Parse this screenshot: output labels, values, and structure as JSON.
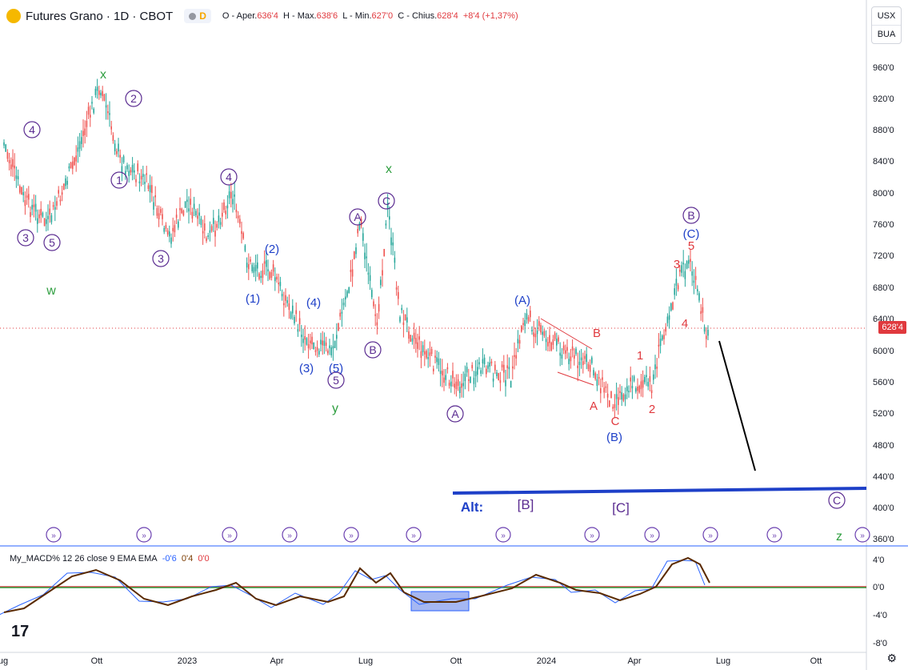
{
  "header": {
    "symbol_title": "Futures Grano · 1D · CBOT",
    "delay_badge": "D",
    "ohlc": {
      "open_label": "O - Aper.",
      "open": "636'4",
      "high_label": "H - Max.",
      "high": "638'6",
      "low_label": "L - Min.",
      "low": "627'0",
      "close_label": "C - Chius.",
      "close": "628'4",
      "change": "+8'4 (+1,37%)"
    }
  },
  "top_buttons": {
    "currency": "USX",
    "unit": "BUA"
  },
  "price_axis": [
    "960'0",
    "920'0",
    "880'0",
    "840'0",
    "800'0",
    "760'0",
    "720'0",
    "680'0",
    "640'0",
    "600'0",
    "560'0",
    "520'0",
    "480'0",
    "440'0",
    "400'0",
    "360'0"
  ],
  "current_price": "628'4",
  "time_axis": [
    "ug",
    "Ott",
    "2023",
    "Apr",
    "Lug",
    "Ott",
    "2024",
    "Apr",
    "Lug",
    "Ott"
  ],
  "macd": {
    "legend_name": "My_MACD% 12 26 close 9 EMA EMA",
    "v1": "-0'6",
    "v2": "0'4",
    "v3": "0'0",
    "axis": [
      "4'0",
      "0'0",
      "-4'0",
      "-8'0"
    ]
  },
  "wave_labels": {
    "circled": [
      "4",
      "2",
      "1",
      "3",
      "5",
      "3",
      "4",
      "A",
      "C",
      "B",
      "5",
      "A",
      "B",
      "C"
    ],
    "blue": [
      "(2)",
      "(1)",
      "(4)",
      "(3)",
      "(5)",
      "(A)",
      "(B)",
      "(C)"
    ],
    "red": [
      "B",
      "A",
      "C",
      "1",
      "2",
      "3",
      "4",
      "5"
    ],
    "green": [
      "x",
      "x",
      "w",
      "y",
      "z"
    ],
    "alt": [
      "Alt:",
      "[B]",
      "[C]"
    ]
  },
  "colors": {
    "up": "#26a69a",
    "down": "#ef5350",
    "circled": "#5b2c91",
    "blue": "#1e40c8",
    "red": "#e0393e",
    "green": "#2e9e3f"
  }
}
